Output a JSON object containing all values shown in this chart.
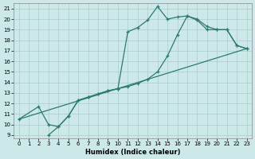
{
  "xlabel": "Humidex (Indice chaleur)",
  "background_color": "#cce8e8",
  "line_color": "#2d7a6e",
  "xlim": [
    -0.5,
    23.5
  ],
  "ylim": [
    8.7,
    21.5
  ],
  "xticks": [
    0,
    1,
    2,
    3,
    4,
    5,
    6,
    7,
    8,
    9,
    10,
    11,
    12,
    13,
    14,
    15,
    16,
    17,
    18,
    19,
    20,
    21,
    22,
    23
  ],
  "yticks": [
    9,
    10,
    11,
    12,
    13,
    14,
    15,
    16,
    17,
    18,
    19,
    20,
    21
  ],
  "grid_color": "#aacccc",
  "line1_x": [
    0,
    2,
    3,
    4,
    5,
    6,
    7,
    8,
    9,
    10,
    11,
    12,
    13,
    14,
    15,
    16,
    17,
    18,
    19,
    20,
    21,
    22,
    23
  ],
  "line1_y": [
    10.5,
    11.7,
    10.0,
    9.8,
    10.8,
    12.3,
    12.6,
    12.9,
    13.2,
    13.4,
    18.8,
    19.2,
    19.9,
    21.2,
    20.0,
    20.2,
    20.3,
    20.0,
    19.3,
    19.0,
    19.0,
    17.5,
    17.2
  ],
  "line2_x": [
    0,
    23
  ],
  "line2_y": [
    10.5,
    17.2
  ],
  "line3_x": [
    3,
    4,
    5,
    6,
    7,
    8,
    9,
    10,
    11,
    12,
    13,
    14,
    15,
    16,
    17,
    18,
    19,
    20,
    21,
    22,
    23
  ],
  "line3_y": [
    9.0,
    9.8,
    10.8,
    12.3,
    12.6,
    12.9,
    13.2,
    13.4,
    13.6,
    13.9,
    14.3,
    15.0,
    16.5,
    18.5,
    20.3,
    19.9,
    19.0,
    19.0,
    19.0,
    17.5,
    17.2
  ]
}
